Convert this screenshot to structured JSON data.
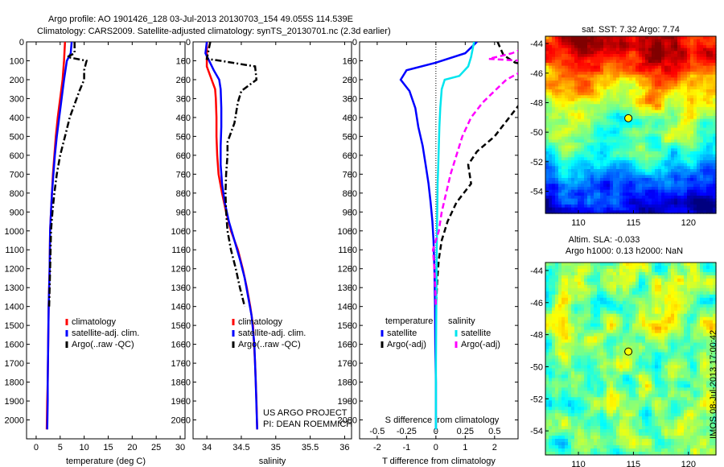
{
  "title_line1": "Argo profile: AO 1901426_128 03-Jul-2013 20130703_154 49.055S 114.539E",
  "title_line2": "Climatology: CARS2009. Satellite-adjusted climatology: synTS_20130701.nc (2.3d earlier)",
  "credit": [
    "US ARGO PROJECT",
    "PI: DEAN ROEMMICH"
  ],
  "timestamp": "IMOS 08-Jul-2013 17:00:42",
  "depth_ticks": [
    0,
    100,
    200,
    300,
    400,
    500,
    600,
    700,
    800,
    900,
    1000,
    1100,
    1200,
    1300,
    1400,
    1500,
    1600,
    1700,
    1800,
    1900,
    2000
  ],
  "chart_data": [
    {
      "type": "line",
      "xlabel": "temperature (deg C)",
      "xlim": [
        -2,
        31
      ],
      "xticks": [
        0,
        5,
        10,
        15,
        20,
        25,
        30
      ],
      "ylim": [
        2100,
        0
      ],
      "legend": [
        "climatology",
        "satellite-adj. clim.",
        "Argo(..raw -QC)"
      ],
      "series": [
        {
          "name": "climatology",
          "color": "#ff0000",
          "style": "solid",
          "points": [
            [
              6.0,
              0
            ],
            [
              5.8,
              100
            ],
            [
              5.5,
              200
            ],
            [
              5.0,
              300
            ],
            [
              4.5,
              400
            ],
            [
              4.1,
              500
            ],
            [
              3.8,
              600
            ],
            [
              3.5,
              700
            ],
            [
              3.3,
              800
            ],
            [
              3.1,
              900
            ],
            [
              2.9,
              1000
            ],
            [
              2.8,
              1200
            ],
            [
              2.6,
              1400
            ],
            [
              2.5,
              1600
            ],
            [
              2.4,
              1800
            ],
            [
              2.3,
              1900
            ],
            [
              2.2,
              2050
            ]
          ]
        },
        {
          "name": "satellite-adj. clim.",
          "color": "#0000ff",
          "style": "solid",
          "points": [
            [
              7.4,
              0
            ],
            [
              7.2,
              60
            ],
            [
              6.4,
              100
            ],
            [
              5.8,
              200
            ],
            [
              5.3,
              300
            ],
            [
              4.8,
              400
            ],
            [
              4.3,
              500
            ],
            [
              3.9,
              600
            ],
            [
              3.6,
              700
            ],
            [
              3.3,
              800
            ],
            [
              3.1,
              900
            ],
            [
              2.9,
              1000
            ],
            [
              2.8,
              1200
            ],
            [
              2.6,
              1400
            ],
            [
              2.5,
              1600
            ],
            [
              2.4,
              1800
            ],
            [
              2.4,
              1900
            ],
            [
              2.3,
              2050
            ]
          ]
        },
        {
          "name": "Argo(..raw -QC)",
          "color": "#000000",
          "style": "dashdot",
          "points": [
            [
              8.0,
              0
            ],
            [
              8.0,
              60
            ],
            [
              6.5,
              80
            ],
            [
              10.5,
              100
            ],
            [
              10.0,
              150
            ],
            [
              10.0,
              200
            ],
            [
              9.0,
              260
            ],
            [
              8.0,
              330
            ],
            [
              7.0,
              400
            ],
            [
              6.0,
              500
            ],
            [
              5.0,
              600
            ],
            [
              4.3,
              700
            ],
            [
              3.8,
              800
            ],
            [
              3.4,
              900
            ],
            [
              3.1,
              1000
            ],
            [
              2.9,
              1200
            ],
            [
              2.7,
              1400
            ]
          ]
        }
      ]
    },
    {
      "type": "line",
      "xlabel": "salinity",
      "xlim": [
        33.8,
        36.1
      ],
      "xticks": [
        34,
        34.5,
        35,
        35.5,
        36
      ],
      "ylim": [
        2100,
        0
      ],
      "legend": [
        "climatology",
        "satellite-adj. clim.",
        "Argo(..raw -QC)"
      ],
      "series": [
        {
          "name": "climatology",
          "color": "#ff0000",
          "style": "solid",
          "points": [
            [
              34.0,
              0
            ],
            [
              34.0,
              130
            ],
            [
              34.07,
              200
            ],
            [
              34.12,
              250
            ],
            [
              34.13,
              300
            ],
            [
              34.14,
              400
            ],
            [
              34.14,
              500
            ],
            [
              34.15,
              600
            ],
            [
              34.17,
              700
            ],
            [
              34.22,
              800
            ],
            [
              34.28,
              900
            ],
            [
              34.35,
              1000
            ],
            [
              34.45,
              1100
            ],
            [
              34.52,
              1200
            ],
            [
              34.58,
              1300
            ],
            [
              34.63,
              1400
            ],
            [
              34.67,
              1500
            ],
            [
              34.7,
              1700
            ],
            [
              34.72,
              1900
            ],
            [
              34.73,
              2050
            ]
          ]
        },
        {
          "name": "satellite-adj. clim.",
          "color": "#0000ff",
          "style": "solid",
          "points": [
            [
              34.0,
              0
            ],
            [
              33.98,
              60
            ],
            [
              34.1,
              150
            ],
            [
              34.18,
              200
            ],
            [
              34.2,
              250
            ],
            [
              34.21,
              350
            ],
            [
              34.21,
              450
            ],
            [
              34.2,
              550
            ],
            [
              34.2,
              650
            ],
            [
              34.22,
              750
            ],
            [
              34.26,
              850
            ],
            [
              34.32,
              950
            ],
            [
              34.4,
              1050
            ],
            [
              34.48,
              1150
            ],
            [
              34.55,
              1250
            ],
            [
              34.6,
              1350
            ],
            [
              34.65,
              1450
            ],
            [
              34.69,
              1600
            ],
            [
              34.71,
              1800
            ],
            [
              34.73,
              2050
            ]
          ]
        },
        {
          "name": "Argo(..raw -QC)",
          "color": "#000000",
          "style": "dashdot",
          "points": [
            [
              34.05,
              0
            ],
            [
              34.0,
              90
            ],
            [
              34.2,
              100
            ],
            [
              34.7,
              130
            ],
            [
              34.72,
              200
            ],
            [
              34.5,
              260
            ],
            [
              34.45,
              320
            ],
            [
              34.4,
              430
            ],
            [
              34.35,
              480
            ],
            [
              34.3,
              530
            ],
            [
              34.3,
              600
            ],
            [
              34.28,
              700
            ],
            [
              34.27,
              800
            ],
            [
              34.28,
              900
            ],
            [
              34.3,
              1000
            ],
            [
              34.35,
              1100
            ],
            [
              34.42,
              1200
            ],
            [
              34.48,
              1300
            ],
            [
              34.55,
              1400
            ]
          ]
        }
      ]
    },
    {
      "type": "line",
      "xlabel": "T difference from climatology",
      "top_label": "S difference from climatology",
      "xlim": [
        -2.6,
        2.8
      ],
      "xticks": [
        -2,
        -1,
        0,
        1,
        2
      ],
      "top_ticks": [
        "-0.5",
        "-0.25",
        "0",
        "0.25",
        "0.5"
      ],
      "ylim": [
        2100,
        0
      ],
      "legend_headings": [
        "temperature",
        "salinity"
      ],
      "legend": [
        "satellite",
        "Argo(-adj)",
        "satellite",
        "Argo(-adj)"
      ],
      "series": [
        {
          "name": "satellite",
          "color": "#0000ff",
          "style": "solid",
          "points": [
            [
              1.4,
              0
            ],
            [
              1.0,
              60
            ],
            [
              0.0,
              110
            ],
            [
              -1.0,
              150
            ],
            [
              -1.2,
              200
            ],
            [
              -0.9,
              260
            ],
            [
              -0.7,
              350
            ],
            [
              -0.6,
              450
            ],
            [
              -0.45,
              550
            ],
            [
              -0.35,
              650
            ],
            [
              -0.25,
              750
            ],
            [
              -0.18,
              850
            ],
            [
              -0.12,
              950
            ],
            [
              -0.08,
              1050
            ],
            [
              -0.05,
              1200
            ],
            [
              -0.03,
              1400
            ],
            [
              -0.02,
              1600
            ],
            [
              0.0,
              1800
            ],
            [
              0.0,
              2050
            ]
          ]
        },
        {
          "name": "Argo(-adj)",
          "color": "#000000",
          "style": "dashed",
          "points": [
            [
              2.1,
              0
            ],
            [
              2.3,
              70
            ],
            [
              2.7,
              110
            ],
            [
              4.0,
              150
            ],
            [
              3.5,
              200
            ],
            [
              3.0,
              300
            ],
            [
              2.5,
              400
            ],
            [
              2.0,
              500
            ],
            [
              1.4,
              580
            ],
            [
              1.1,
              650
            ],
            [
              1.2,
              750
            ],
            [
              0.7,
              850
            ],
            [
              0.4,
              950
            ],
            [
              0.2,
              1050
            ],
            [
              0.1,
              1150
            ],
            [
              0.05,
              1250
            ],
            [
              0.02,
              1350
            ],
            [
              0.0,
              1400
            ]
          ]
        },
        {
          "name": "satellite",
          "color": "#00e5ee",
          "style": "solid",
          "points": [
            [
              1.3,
              0
            ],
            [
              1.2,
              80
            ],
            [
              1.1,
              130
            ],
            [
              0.8,
              180
            ],
            [
              0.3,
              200
            ],
            [
              0.2,
              250
            ],
            [
              0.15,
              350
            ],
            [
              0.12,
              450
            ],
            [
              0.1,
              550
            ],
            [
              0.08,
              650
            ],
            [
              0.06,
              750
            ],
            [
              0.05,
              850
            ],
            [
              0.04,
              950
            ],
            [
              0.03,
              1100
            ],
            [
              0.02,
              1300
            ],
            [
              0.01,
              1500
            ],
            [
              0.0,
              1700
            ],
            [
              0.0,
              2050
            ]
          ]
        },
        {
          "name": "Argo(-adj)",
          "color": "#ff00ff",
          "style": "dashed",
          "points": [
            [
              3.5,
              0
            ],
            [
              2.6,
              60
            ],
            [
              1.8,
              90
            ],
            [
              4.0,
              110
            ],
            [
              3.0,
              150
            ],
            [
              2.4,
              200
            ],
            [
              2.0,
              260
            ],
            [
              1.6,
              320
            ],
            [
              1.2,
              400
            ],
            [
              0.9,
              500
            ],
            [
              0.7,
              600
            ],
            [
              0.5,
              700
            ],
            [
              0.35,
              800
            ],
            [
              0.2,
              900
            ],
            [
              0.1,
              1000
            ],
            [
              -0.1,
              1100
            ],
            [
              -0.05,
              1200
            ],
            [
              -0.02,
              1300
            ],
            [
              0.0,
              1400
            ]
          ]
        }
      ]
    },
    {
      "type": "heatmap",
      "title": "sat. SST: 7.32 Argo: 7.74",
      "xlim": [
        107,
        122.5
      ],
      "ylim": [
        -55.5,
        -43.5
      ],
      "xticks": [
        110,
        115,
        120
      ],
      "yticks": [
        -44,
        -46,
        -48,
        -50,
        -52,
        -54
      ],
      "marker": [
        114.539,
        -49.055
      ]
    },
    {
      "type": "heatmap",
      "title": "Altim. SLA: -0.033",
      "subtitle": "Argo h1000: 0.13 h2000: NaN",
      "xlim": [
        107,
        122.5
      ],
      "ylim": [
        -55.5,
        -43.5
      ],
      "xticks": [
        110,
        115,
        120
      ],
      "yticks": [
        -44,
        -46,
        -48,
        -50,
        -52,
        -54
      ],
      "marker": [
        114.539,
        -49.055
      ]
    }
  ]
}
